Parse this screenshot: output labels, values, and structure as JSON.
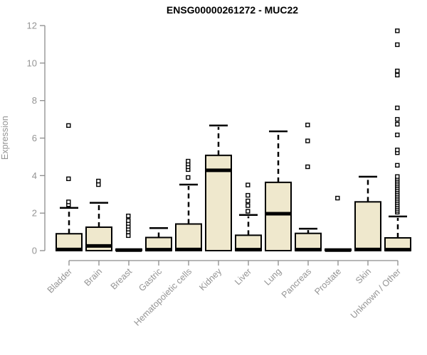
{
  "title": "ENSG00000261272 - MUC22",
  "chart_data": {
    "type": "boxplot",
    "title": "ENSG00000261272 - MUC22",
    "xlabel": "",
    "ylabel": "Expression",
    "ylim": [
      0,
      12
    ],
    "y_ticks": [
      0,
      2,
      4,
      6,
      8,
      10,
      12
    ],
    "grid": false,
    "legend": "none",
    "categories": [
      "Bladder",
      "Brain",
      "Breast",
      "Gastric",
      "Hematopoietic cells",
      "Kidney",
      "Liver",
      "Lung",
      "Pancreas",
      "Prostate",
      "Skin",
      "Unknown / Other"
    ],
    "boxes": [
      {
        "category": "Bladder",
        "q1": 0,
        "median": 0.06,
        "q3": 0.9,
        "whisker_low": 0,
        "whisker_high": 2.28,
        "outliers": [
          2.45,
          2.6,
          3.83,
          6.67
        ]
      },
      {
        "category": "Brain",
        "q1": 0,
        "median": 0.25,
        "q3": 1.25,
        "whisker_low": 0,
        "whisker_high": 2.55,
        "outliers": [
          3.52,
          3.71
        ]
      },
      {
        "category": "Breast",
        "q1": 0,
        "median": 0.03,
        "q3": 0.08,
        "whisker_low": 0,
        "whisker_high": 0.08,
        "outliers": [
          0.8,
          1.0,
          1.15,
          1.3,
          1.45,
          1.6,
          1.85
        ]
      },
      {
        "category": "Gastric",
        "q1": 0,
        "median": 0.05,
        "q3": 0.7,
        "whisker_low": 0,
        "whisker_high": 1.2,
        "outliers": []
      },
      {
        "category": "Hematopoietic cells",
        "q1": 0,
        "median": 0.06,
        "q3": 1.42,
        "whisker_low": 0,
        "whisker_high": 3.52,
        "outliers": [
          3.9,
          4.32,
          4.47,
          4.62,
          4.77
        ]
      },
      {
        "category": "Kidney",
        "q1": 0,
        "median": 4.28,
        "q3": 5.08,
        "whisker_low": 0,
        "whisker_high": 6.67,
        "outliers": []
      },
      {
        "category": "Liver",
        "q1": 0,
        "median": 0.05,
        "q3": 0.82,
        "whisker_low": 0,
        "whisker_high": 1.9,
        "outliers": [
          2.1,
          2.4,
          2.65,
          2.95,
          3.5
        ]
      },
      {
        "category": "Lung",
        "q1": 0,
        "median": 1.97,
        "q3": 3.64,
        "whisker_low": 0,
        "whisker_high": 6.36,
        "outliers": []
      },
      {
        "category": "Pancreas",
        "q1": 0,
        "median": 0.05,
        "q3": 0.92,
        "whisker_low": 0,
        "whisker_high": 1.17,
        "outliers": [
          4.47,
          5.85,
          6.7
        ]
      },
      {
        "category": "Prostate",
        "q1": 0,
        "median": 0.03,
        "q3": 0.08,
        "whisker_low": 0,
        "whisker_high": 0.08,
        "outliers": [
          2.8
        ]
      },
      {
        "category": "Skin",
        "q1": 0,
        "median": 0.06,
        "q3": 2.6,
        "whisker_low": 0,
        "whisker_high": 3.94,
        "outliers": []
      },
      {
        "category": "Unknown / Other",
        "q1": 0,
        "median": 0.05,
        "q3": 0.68,
        "whisker_low": 0,
        "whisker_high": 1.82,
        "outliers": [
          2.05,
          2.15,
          2.25,
          2.35,
          2.45,
          2.55,
          2.65,
          2.75,
          2.85,
          2.95,
          3.05,
          3.15,
          3.25,
          3.35,
          3.45,
          3.55,
          3.65,
          3.75,
          3.85,
          3.95,
          4.55,
          5.22,
          5.37,
          6.17,
          6.74,
          7.0,
          7.61,
          9.36,
          9.58,
          10.98,
          11.72
        ]
      }
    ],
    "style": {
      "box_fill": "#EFE8CD",
      "box_stroke": "#000000",
      "median_color": "#000000",
      "whisker_color": "#000000",
      "outlier_marker": "open-square",
      "axis_color": "#8C8C8C",
      "tick_label_color": "#949494",
      "title_color": "#000000",
      "background": "#FFFFFF"
    }
  }
}
